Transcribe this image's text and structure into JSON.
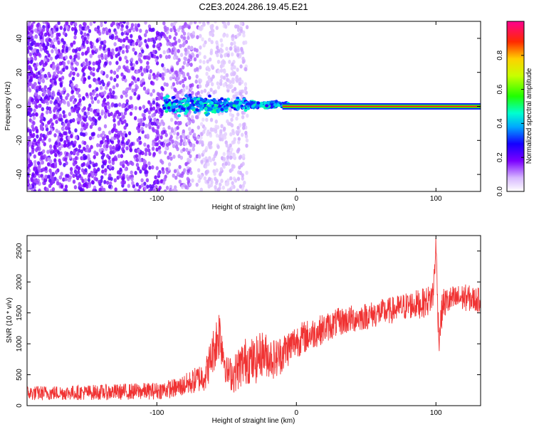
{
  "title": "C2E3.2024.286.19.45.E21",
  "chart_data": [
    {
      "type": "heatmap",
      "xlabel": "Height of straight line (km)",
      "ylabel": "Frequency (Hz)",
      "xlim": [
        -193,
        132
      ],
      "ylim": [
        -50,
        50
      ],
      "xticks": [
        -100,
        0,
        100
      ],
      "xtick_labels": [
        "-100",
        "0",
        "100"
      ],
      "yticks": [
        -40,
        -20,
        0,
        20,
        40
      ],
      "ytick_labels": [
        "-40",
        "-20",
        "0",
        "20",
        "40"
      ],
      "colorbar": {
        "label": "Normalized spectral amplitude",
        "range": [
          0,
          1
        ],
        "ticks": [
          0,
          0.2,
          0.4,
          0.6,
          0.8
        ],
        "tick_labels": [
          "0.0",
          "0.2",
          "0.4",
          "0.6",
          "0.8"
        ]
      },
      "features": [
        {
          "feature": "broadband noise",
          "x_range": [
            -193,
            -35
          ],
          "freq_range": [
            -50,
            50
          ],
          "amplitude": 0.15
        },
        {
          "feature": "spread signal",
          "x_range": [
            -95,
            -10
          ],
          "freq_range": [
            -10,
            10
          ],
          "amplitude": 0.35
        },
        {
          "feature": "narrow line",
          "x_range": [
            -10,
            132
          ],
          "freq_range": [
            -1.5,
            1.5
          ],
          "amplitude": 0.95
        }
      ]
    },
    {
      "type": "line",
      "xlabel": "Height of straight line (km)",
      "ylabel": "SNR (10 * v/v)",
      "xlim": [
        -193,
        132
      ],
      "ylim": [
        0,
        2750
      ],
      "xticks": [
        -100,
        0,
        100
      ],
      "xtick_labels": [
        "-100",
        "0",
        "100"
      ],
      "yticks": [
        0,
        500,
        1000,
        1500,
        2000,
        2500
      ],
      "ytick_labels": [
        "0",
        "500",
        "1000",
        "1500",
        "2000",
        "2500"
      ],
      "color": "#f03232",
      "series": [
        {
          "x": [
            -193,
            -160,
            -130,
            -100,
            -85,
            -75,
            -65,
            -58,
            -55,
            -50,
            -45,
            -40,
            -35,
            -30,
            -25,
            -20,
            -15,
            -10,
            -5,
            0,
            10,
            20,
            30,
            40,
            50,
            60,
            70,
            80,
            90,
            95,
            98,
            100,
            102,
            105,
            110,
            120,
            132
          ],
          "y": [
            200,
            210,
            220,
            240,
            290,
            380,
            500,
            1000,
            1200,
            550,
            500,
            650,
            750,
            700,
            850,
            800,
            750,
            850,
            950,
            1050,
            1150,
            1250,
            1350,
            1400,
            1450,
            1500,
            1550,
            1620,
            1650,
            1700,
            1800,
            2600,
            1100,
            1650,
            1700,
            1750,
            1700
          ],
          "noise_amplitude": [
            120,
            120,
            130,
            140,
            160,
            200,
            260,
            400,
            450,
            250,
            300,
            380,
            400,
            380,
            380,
            350,
            330,
            320,
            300,
            280,
            260,
            240,
            230,
            230,
            220,
            220,
            220,
            230,
            240,
            250,
            260,
            200,
            300,
            250,
            230,
            220,
            200
          ]
        }
      ]
    }
  ]
}
